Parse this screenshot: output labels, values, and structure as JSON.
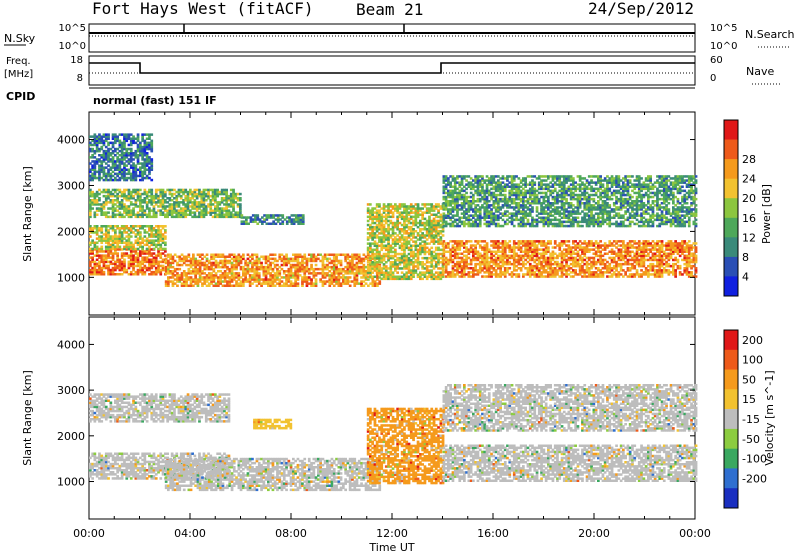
{
  "header": {
    "station": "Fort Hays West (fitACF)",
    "beam": "Beam 21",
    "date": "24/Sep/2012"
  },
  "noise_panel": {
    "left_label": "N.Sky",
    "left_ticks": [
      "10^5",
      "10^0"
    ],
    "right_ticks": [
      "10^5",
      "10^0"
    ],
    "right_label": "N.Search"
  },
  "freq_panel": {
    "left_label_1": "Freq.",
    "left_label_2": "[MHz]",
    "left_ticks": [
      "18",
      "8"
    ],
    "right_ticks": [
      "60",
      "0"
    ],
    "right_label": "Nave"
  },
  "cpid": {
    "label": "CPID",
    "value": "normal (fast) 151 IF"
  },
  "chart_data": [
    {
      "type": "heatmap",
      "name": "power",
      "ylabel": "Slant Range [km]",
      "xlabel": "Time UT",
      "x_ticks": [
        "00:00",
        "04:00",
        "08:00",
        "12:00",
        "16:00",
        "20:00",
        "00:00"
      ],
      "x_range_hours": [
        0,
        24
      ],
      "y_ticks": [
        1000,
        2000,
        3000,
        4000
      ],
      "ylim": [
        180,
        4600
      ],
      "colorbar": {
        "label": "Power [dB]",
        "ticks": [
          "4",
          "8",
          "12",
          "16",
          "20",
          "24",
          "28"
        ],
        "colors": [
          "#1020e0",
          "#2a4fb5",
          "#3a8a7a",
          "#4ea85a",
          "#8cc63f",
          "#f2c230",
          "#f59a1c",
          "#ee5a1a",
          "#e01818"
        ]
      },
      "echo_bands": [
        {
          "t0": 0.0,
          "t1": 3.0,
          "r0": 1050,
          "r1": 1600,
          "level": 0.78
        },
        {
          "t0": 0.0,
          "t1": 3.0,
          "r0": 1600,
          "r1": 2100,
          "level": 0.55
        },
        {
          "t0": 0.0,
          "t1": 6.0,
          "r0": 2300,
          "r1": 2900,
          "level": 0.45
        },
        {
          "t0": 0.0,
          "t1": 2.5,
          "r0": 3100,
          "r1": 4100,
          "level": 0.25
        },
        {
          "t0": 3.0,
          "t1": 11.5,
          "r0": 800,
          "r1": 1500,
          "level": 0.72
        },
        {
          "t0": 6.0,
          "t1": 8.5,
          "r0": 2150,
          "r1": 2350,
          "level": 0.3
        },
        {
          "t0": 11.0,
          "t1": 14.0,
          "r0": 950,
          "r1": 2600,
          "level": 0.55
        },
        {
          "t0": 14.0,
          "t1": 24.0,
          "r0": 1000,
          "r1": 1800,
          "level": 0.74
        },
        {
          "t0": 14.0,
          "t1": 24.0,
          "r0": 2100,
          "r1": 3200,
          "level": 0.35
        }
      ]
    },
    {
      "type": "heatmap",
      "name": "velocity",
      "ylabel": "Slant Range [km]",
      "xlabel": "Time UT",
      "x_ticks": [
        "00:00",
        "04:00",
        "08:00",
        "12:00",
        "16:00",
        "20:00",
        "00:00"
      ],
      "x_range_hours": [
        0,
        24
      ],
      "y_ticks": [
        1000,
        2000,
        3000,
        4000
      ],
      "ylim": [
        180,
        4600
      ],
      "colorbar": {
        "label": "Velocity [m s^-1]",
        "ticks": [
          "200",
          "100",
          "50",
          "15",
          "-15",
          "-50",
          "-100",
          "-200"
        ],
        "colors": [
          "#1a2fc0",
          "#2f6fd0",
          "#3aa860",
          "#8ccc40",
          "#bdbdbd",
          "#f2c230",
          "#f59a1c",
          "#ee5a1a",
          "#e01818"
        ]
      },
      "echo_bands": [
        {
          "t0": 0.0,
          "t1": 5.5,
          "r0": 1050,
          "r1": 1600,
          "level": 0.5
        },
        {
          "t0": 0.0,
          "t1": 5.5,
          "r0": 2300,
          "r1": 2900,
          "level": 0.5
        },
        {
          "t0": 3.0,
          "t1": 11.5,
          "r0": 800,
          "r1": 1500,
          "level": 0.5
        },
        {
          "t0": 6.5,
          "t1": 8.0,
          "r0": 2150,
          "r1": 2350,
          "level": 0.62
        },
        {
          "t0": 11.0,
          "t1": 14.0,
          "r0": 950,
          "r1": 2600,
          "level": 0.68
        },
        {
          "t0": 14.0,
          "t1": 24.0,
          "r0": 1000,
          "r1": 1800,
          "level": 0.5
        },
        {
          "t0": 14.0,
          "t1": 24.0,
          "r0": 2100,
          "r1": 3100,
          "level": 0.5
        }
      ]
    }
  ]
}
